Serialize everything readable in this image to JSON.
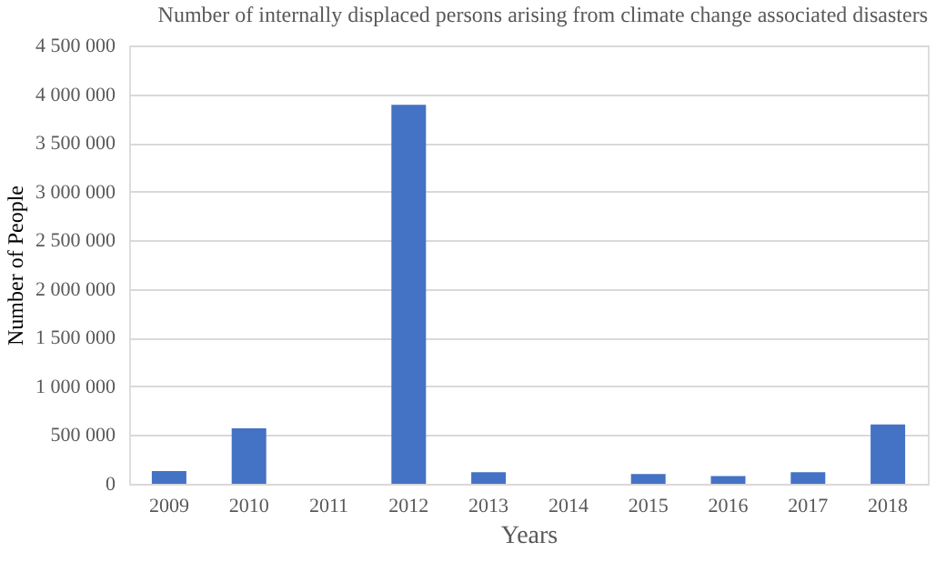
{
  "chart_data": {
    "type": "bar",
    "title": "Number of internally displaced persons arising from climate change associated disasters",
    "xlabel": "Years",
    "ylabel": "Number of People",
    "categories": [
      "2009",
      "2010",
      "2011",
      "2012",
      "2013",
      "2014",
      "2015",
      "2016",
      "2017",
      "2018"
    ],
    "values": [
      130000,
      570000,
      0,
      3890000,
      120000,
      0,
      100000,
      80000,
      120000,
      610000
    ],
    "color": "#4472c4",
    "ylim": [
      0,
      4500000
    ],
    "yticks": [
      {
        "value": 0,
        "label": "0"
      },
      {
        "value": 500000,
        "label": "500 000"
      },
      {
        "value": 1000000,
        "label": "1 000 000"
      },
      {
        "value": 1500000,
        "label": "1 500 000"
      },
      {
        "value": 2000000,
        "label": "2 000 000"
      },
      {
        "value": 2500000,
        "label": "2 500 000"
      },
      {
        "value": 3000000,
        "label": "3 000 000"
      },
      {
        "value": 3500000,
        "label": "3 500 000"
      },
      {
        "value": 4000000,
        "label": "4 000 000"
      },
      {
        "value": 4500000,
        "label": "4 500 000"
      }
    ],
    "grid": "y"
  }
}
